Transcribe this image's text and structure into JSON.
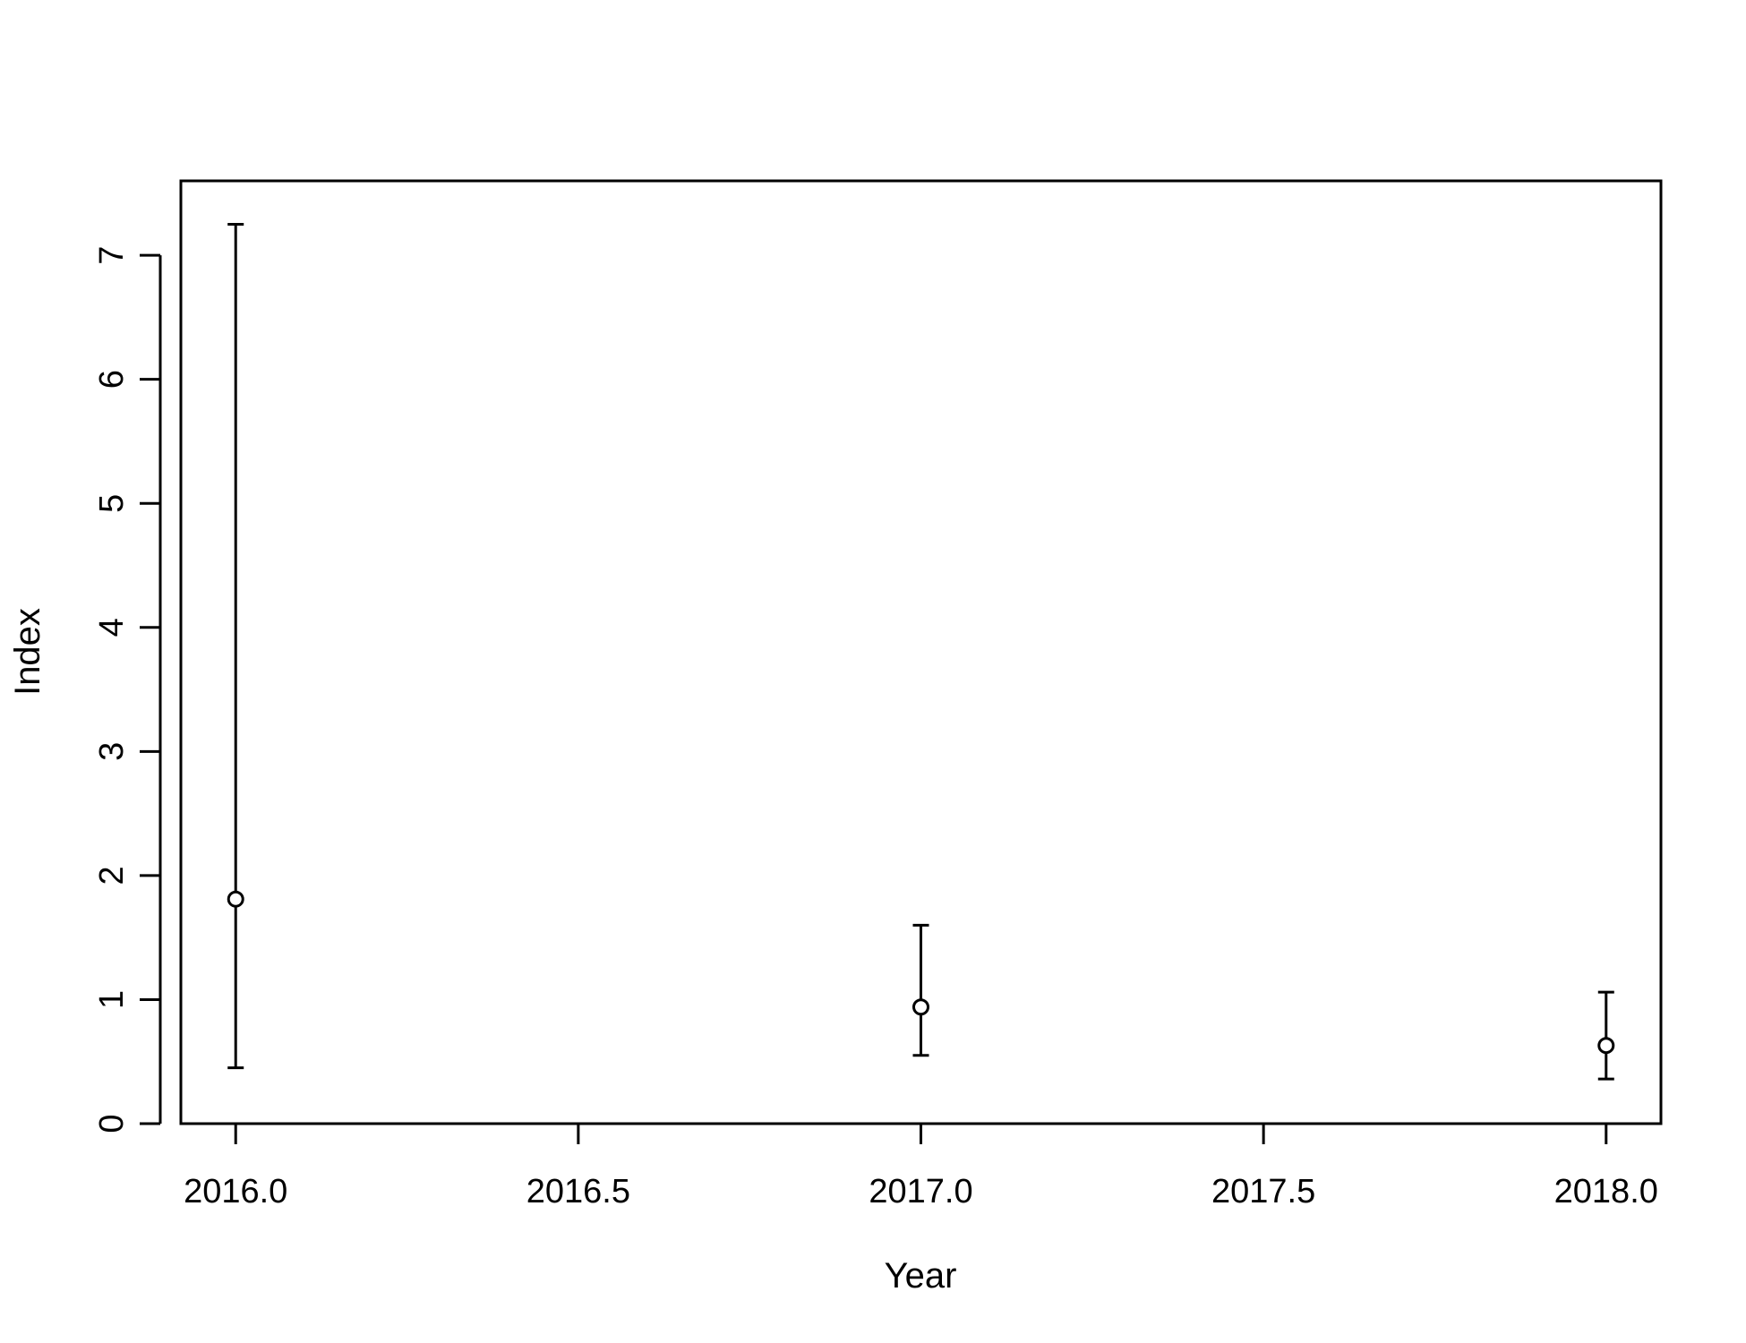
{
  "chart_data": {
    "type": "scatter",
    "title": "",
    "xlabel": "Year",
    "ylabel": "Index",
    "xlim": [
      2015.92,
      2018.08
    ],
    "ylim": [
      0,
      7.6
    ],
    "x_ticks": [
      2016.0,
      2016.5,
      2017.0,
      2017.5,
      2018.0
    ],
    "x_tick_labels": [
      "2016.0",
      "2016.5",
      "2017.0",
      "2017.5",
      "2018.0"
    ],
    "y_ticks": [
      0,
      1,
      2,
      3,
      4,
      5,
      6,
      7
    ],
    "y_tick_labels": [
      "0",
      "1",
      "2",
      "3",
      "4",
      "5",
      "6",
      "7"
    ],
    "grid": false,
    "legend": "none",
    "series": [
      {
        "points": [
          {
            "x": 2016.0,
            "y": 1.81,
            "lower": 0.45,
            "upper": 7.25
          },
          {
            "x": 2017.0,
            "y": 0.94,
            "lower": 0.55,
            "upper": 1.6
          },
          {
            "x": 2018.0,
            "y": 0.63,
            "lower": 0.36,
            "upper": 1.06
          }
        ]
      }
    ],
    "colors": {
      "axis": "#000000",
      "marker_fill": "#ffffff",
      "marker_stroke": "#000000",
      "background": "#ffffff"
    }
  }
}
